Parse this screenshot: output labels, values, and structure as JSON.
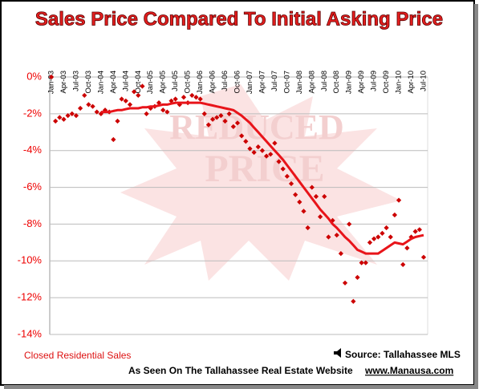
{
  "chart_data": {
    "type": "scatter",
    "title": "Sales Price Compared To Initial Asking Price",
    "watermark": [
      "REDUCED",
      "PRICE"
    ],
    "footnote": "Closed Residential Sales",
    "source": "Source: Tallahassee MLS",
    "credit": "As Seen On The Tallahassee Real Estate Website",
    "website": "www.Manausa.com",
    "categories": [
      "Jan-03",
      null,
      null,
      "Apr-03",
      null,
      null,
      "Jul-03",
      null,
      null,
      "Oct-03",
      null,
      null,
      "Jan-04",
      null,
      null,
      "Apr-04",
      null,
      null,
      "Jul-04",
      null,
      null,
      "Oct-04",
      null,
      null,
      "Jan-05",
      null,
      null,
      "Apr-05",
      null,
      null,
      "Jul-05",
      null,
      null,
      "Oct-05",
      null,
      null,
      "Jan-06",
      null,
      null,
      "Apr-06",
      null,
      null,
      "Jul-06",
      null,
      null,
      "Oct-06",
      null,
      null,
      "Jan-07",
      null,
      null,
      "Apr-07",
      null,
      null,
      "Jul-07",
      null,
      null,
      "Oct-07",
      null,
      null,
      "Jan-08",
      null,
      null,
      "Apr-08",
      null,
      null,
      "Jul-08",
      null,
      null,
      "Oct-08",
      null,
      null,
      "Jan-09",
      null,
      null,
      "Apr-09",
      null,
      null,
      "Jul-09",
      null,
      null,
      "Oct-09",
      null,
      null,
      "Jan-10",
      null,
      null,
      "Apr-10",
      null,
      null,
      "Jul-10"
    ],
    "series": [
      {
        "color": "#cc0000",
        "values": [
          0,
          -2.4,
          -2.2,
          -2.3,
          -2.1,
          -2.0,
          -2.1,
          -1.7,
          -1.0,
          -1.5,
          -1.6,
          -1.9,
          -2.0,
          -1.8,
          -1.9,
          -3.4,
          -2.4,
          -1.2,
          -1.3,
          -1.5,
          -0.8,
          -1.0,
          -0.5,
          -2.0,
          -1.7,
          -1.6,
          -1.4,
          -1.8,
          -1.9,
          -1.3,
          -1.2,
          -1.5,
          -1.1,
          -1.4,
          -1.0,
          -1.1,
          -1.2,
          -2.0,
          -2.6,
          -2.3,
          -2.2,
          -2.1,
          -2.4,
          -2.0,
          -2.7,
          -2.5,
          -3.2,
          -3.5,
          -3.9,
          -4.1,
          -3.8,
          -4.0,
          -4.3,
          -4.2,
          -3.6,
          -4.6,
          -5.0,
          -5.4,
          -5.8,
          -6.4,
          -6.8,
          -7.3,
          -8.2,
          -6.0,
          -6.5,
          -7.6,
          -6.5,
          -8.7,
          -7.8,
          -8.6,
          -9.6,
          -11.2,
          -8.0,
          -12.2,
          -10.9,
          -10.1,
          -10.1,
          -9.0,
          -8.8,
          -8.7,
          -8.5,
          -8.2,
          -8.7,
          -7.5,
          -6.7,
          -10.2,
          -9.3,
          -8.7,
          -8.4,
          -8.3,
          -9.8
        ]
      },
      {
        "type": "line",
        "color": "#e8141a",
        "values": [
          null,
          null,
          null,
          null,
          null,
          null,
          null,
          null,
          null,
          null,
          null,
          null,
          -1.9,
          -1.9,
          -1.9,
          -1.85,
          -1.8,
          -1.8,
          -1.75,
          -1.7,
          -1.7,
          -1.7,
          -1.65,
          -1.65,
          -1.6,
          -1.6,
          -1.55,
          -1.5,
          -1.5,
          -1.45,
          -1.4,
          -1.4,
          -1.4,
          -1.4,
          -1.4,
          -1.4,
          -1.4,
          -1.45,
          -1.5,
          -1.55,
          -1.6,
          -1.65,
          -1.7,
          -1.75,
          -1.8,
          -1.95,
          -2.1,
          -2.3,
          -2.5,
          -2.75,
          -3.0,
          -3.25,
          -3.5,
          -3.75,
          -4.0,
          -4.25,
          -4.5,
          -4.8,
          -5.1,
          -5.4,
          -5.7,
          -6.0,
          -6.3,
          -6.6,
          -6.9,
          -7.2,
          -7.45,
          -7.7,
          -8.0,
          -8.2,
          -8.45,
          -8.7,
          -8.9,
          -9.15,
          -9.4,
          -9.5,
          -9.6,
          -9.6,
          -9.6,
          -9.6,
          -9.45,
          -9.3,
          -9.15,
          -9.0,
          -9.05,
          -9.1,
          -8.95,
          -8.8,
          -8.7,
          -8.65,
          -8.6
        ]
      }
    ],
    "ylim": [
      -14,
      0
    ],
    "yticks": [
      {
        "value": 0,
        "label": "0%"
      },
      {
        "value": -2,
        "label": "-2%"
      },
      {
        "value": -4,
        "label": "-4%"
      },
      {
        "value": -6,
        "label": "-6%"
      },
      {
        "value": -8,
        "label": "-8%"
      },
      {
        "value": -10,
        "label": "-10%"
      },
      {
        "value": -12,
        "label": "-12%"
      },
      {
        "value": -14,
        "label": "-14%"
      }
    ],
    "grid": true
  }
}
